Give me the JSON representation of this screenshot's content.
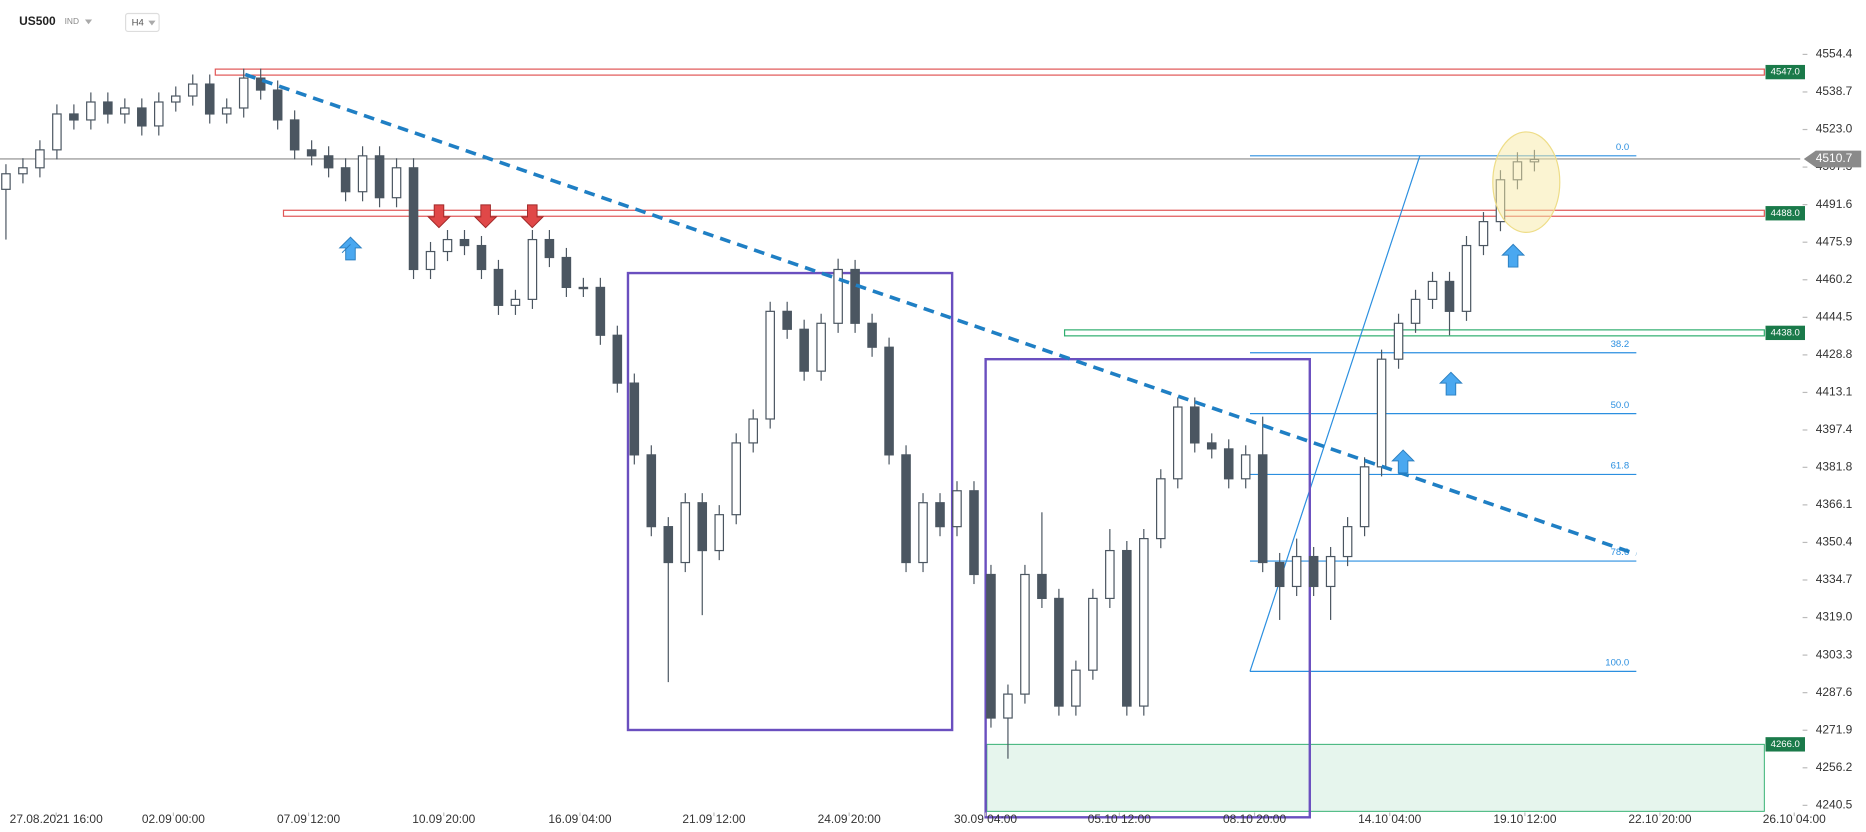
{
  "header": {
    "symbol": "US500",
    "market": "IND",
    "timeframe": "H4"
  },
  "chart_data": {
    "type": "candlestick",
    "open": [
      4498,
      4504.5,
      4507,
      4514.5,
      4529.5,
      4527,
      4534.5,
      4529.5,
      4532,
      4524.5,
      4534.5,
      4537,
      4542,
      4529.5,
      4532,
      4544.5,
      4539.5,
      4527,
      4514.5,
      4512,
      4507,
      4497,
      4512,
      4494.5,
      4507,
      4464.5,
      4472,
      4477,
      4474.5,
      4464.5,
      4449.5,
      4452,
      4477,
      4469.5,
      4457,
      4457,
      4437,
      4417,
      4387,
      4357,
      4342,
      4367,
      4347,
      4362,
      4392,
      4402,
      4447,
      4439.5,
      4422,
      4442,
      4464.5,
      4442,
      4432,
      4387,
      4342,
      4367,
      4357,
      4372,
      4337,
      4277,
      4287,
      4337,
      4327,
      4282,
      4297,
      4327,
      4347,
      4282,
      4352,
      4377,
      4407,
      4392,
      4389.5,
      4377,
      4387,
      4342,
      4332,
      4344.5,
      4332,
      4344.5,
      4357,
      4382,
      4427,
      4442,
      4452,
      4459.5,
      4447,
      4474.5,
      4484.5,
      4502,
      4509.5
    ],
    "high": [
      4508.5,
      4511,
      4518.5,
      4533.5,
      4533.5,
      4538.5,
      4538.5,
      4536,
      4536,
      4538.5,
      4541,
      4546,
      4546,
      4536,
      4548.5,
      4548.5,
      4543.5,
      4531,
      4518.5,
      4516,
      4511,
      4516,
      4516,
      4511,
      4511,
      4476,
      4481,
      4481,
      4478.5,
      4468.5,
      4456,
      4481,
      4481,
      4473.5,
      4461,
      4461,
      4441,
      4421,
      4391,
      4361,
      4371,
      4371,
      4366,
      4396,
      4406,
      4451,
      4451,
      4443.5,
      4446,
      4469,
      4468.5,
      4446,
      4436,
      4391,
      4371,
      4371,
      4376,
      4376,
      4341,
      4291,
      4341,
      4363,
      4331,
      4301,
      4331,
      4356,
      4351,
      4356,
      4381,
      4411,
      4411,
      4396,
      4393.5,
      4391,
      4403,
      4346,
      4352,
      4348.5,
      4348.5,
      4361,
      4386,
      4431,
      4446,
      4456,
      4463.5,
      4463.5,
      4478.5,
      4488.5,
      4506,
      4513.5,
      4514.5
    ],
    "low": [
      4477,
      4500.5,
      4503,
      4510.5,
      4523,
      4523,
      4525.5,
      4525.5,
      4520.5,
      4520.5,
      4530.5,
      4533,
      4525.5,
      4525.5,
      4528,
      4535.5,
      4523,
      4510.5,
      4508,
      4503,
      4493,
      4493,
      4490.5,
      4490.5,
      4460.5,
      4460.5,
      4468,
      4470.5,
      4460.5,
      4445.5,
      4445.5,
      4448,
      4465.5,
      4453,
      4453,
      4433,
      4413,
      4383,
      4353,
      4292,
      4338,
      4320,
      4343,
      4358,
      4388,
      4398,
      4435.5,
      4418,
      4418,
      4438,
      4438,
      4428,
      4383,
      4338,
      4338,
      4353,
      4353,
      4333,
      4273,
      4260,
      4283,
      4323,
      4278,
      4278,
      4293,
      4323,
      4278,
      4278,
      4348,
      4373,
      4388,
      4385.5,
      4373,
      4373,
      4338,
      4318,
      4328,
      4328,
      4318,
      4340.5,
      4353,
      4378,
      4423,
      4438,
      4448,
      4437,
      4443,
      4470.5,
      4480.5,
      4498,
      4505.5
    ],
    "close": [
      4504.5,
      4507,
      4514.5,
      4529.5,
      4527,
      4534.5,
      4529.5,
      4532,
      4524.5,
      4534.5,
      4537,
      4542,
      4529.5,
      4532,
      4544.5,
      4539.5,
      4527,
      4514.5,
      4512,
      4507,
      4497,
      4512,
      4494.5,
      4507,
      4464.5,
      4472,
      4477,
      4474.5,
      4464.5,
      4449.5,
      4452,
      4477,
      4469.5,
      4457,
      4457,
      4437,
      4417,
      4387,
      4357,
      4342,
      4367,
      4347,
      4362,
      4392,
      4402,
      4447,
      4439.5,
      4422,
      4442,
      4464.5,
      4442,
      4432,
      4387,
      4342,
      4367,
      4357,
      4372,
      4337,
      4277,
      4287,
      4337,
      4327,
      4282,
      4297,
      4327,
      4347,
      4282,
      4352,
      4377,
      4407,
      4392,
      4389.5,
      4377,
      4387,
      4342,
      4332,
      4344.5,
      4332,
      4344.5,
      4357,
      4382,
      4427,
      4442,
      4452,
      4459.5,
      4447,
      4474.5,
      4484.5,
      4502,
      4509.5,
      4510.5
    ],
    "up_color": "#ffffff",
    "down_color": "#4b5661",
    "wick_color": "#4b5661",
    "xlim": [
      -0.35,
      105.65
    ],
    "xticks": [
      {
        "value": 2.96,
        "label": "27.08.2021  16:00"
      },
      {
        "value": 9.86,
        "label": "02.09  00:00"
      },
      {
        "value": 17.82,
        "label": "07.09  12:00"
      },
      {
        "value": 25.78,
        "label": "10.09  20:00"
      },
      {
        "value": 33.8,
        "label": "16.09  04:00"
      },
      {
        "value": 41.69,
        "label": "21.09  12:00"
      },
      {
        "value": 49.65,
        "label": "24.09  20:00"
      },
      {
        "value": 57.68,
        "label": "30.09  04:00"
      },
      {
        "value": 65.56,
        "label": "05.10  12:00"
      },
      {
        "value": 73.52,
        "label": "08.10  20:00"
      },
      {
        "value": 81.48,
        "label": "14.10  04:00"
      },
      {
        "value": 89.44,
        "label": "19.10  12:00"
      },
      {
        "value": 97.39,
        "label": "22.10  20:00"
      },
      {
        "value": 105.3,
        "label": "26.10  04:00"
      }
    ],
    "ylim": [
      4238,
      4577
    ],
    "yticks": [
      4554.4,
      4538.7,
      {
        "value": 4523.0,
        "label": "4523.0"
      },
      4507.3,
      4491.6,
      4475.9,
      4460.2,
      4444.5,
      4428.8,
      4413.1,
      4397.4,
      4381.8,
      4366.1,
      4350.4,
      4334.7,
      {
        "value": 4319.0,
        "label": "4319.0"
      },
      4303.3,
      4287.6,
      4271.9,
      4256.2,
      4240.5
    ],
    "current_price": {
      "value": 4510.7,
      "label": "4510.7"
    },
    "levels": [
      {
        "value": 4547.0,
        "label": "4547.0",
        "color": "#e05555"
      },
      {
        "value": 4488.0,
        "label": "4488.0",
        "color": "#e05555"
      },
      {
        "value": 4438.0,
        "label": "4438.0",
        "color": "#2fae6e"
      },
      {
        "value": 4266.0,
        "label": "4266.0",
        "color": "#2fae6e"
      }
    ],
    "fibonacci": {
      "high": 4512,
      "low": 4296.5,
      "color": "#2b8fe0",
      "ratios": [
        {
          "value": 0,
          "label": "0.0"
        },
        38.2,
        {
          "value": 50,
          "label": "50.0"
        },
        61.8,
        78.6,
        {
          "value": 100,
          "label": "100.0"
        }
      ]
    }
  }
}
